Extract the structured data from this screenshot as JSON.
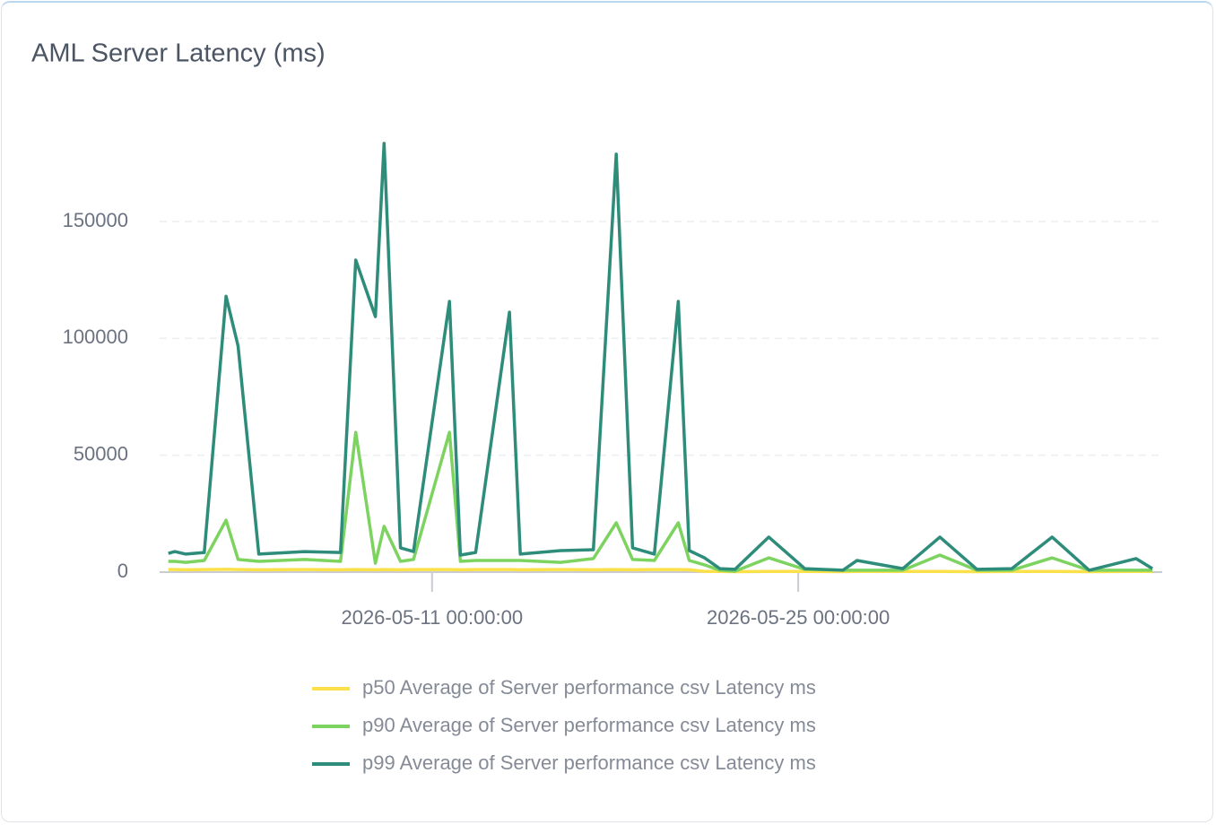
{
  "chart_data": {
    "type": "line",
    "title": "AML Server Latency (ms)",
    "x": [
      "2026-04-30 22:00:00",
      "2026-05-01 04:00:00",
      "2026-05-01 14:00:00",
      "2026-05-02 07:00:00",
      "2026-05-03 03:00:00",
      "2026-05-03 14:00:00",
      "2026-05-04 09:00:00",
      "2026-05-06 03:00:00",
      "2026-05-07 12:00:00",
      "2026-05-08 02:00:00",
      "2026-05-08 20:00:00",
      "2026-05-09 04:00:00",
      "2026-05-09 19:00:00",
      "2026-05-10 07:00:00",
      "2026-05-11 16:00:00",
      "2026-05-12 02:00:00",
      "2026-05-12 16:00:00",
      "2026-05-13 23:00:00",
      "2026-05-14 09:00:00",
      "2026-05-15 22:00:00",
      "2026-05-17 04:00:00",
      "2026-05-18 01:00:00",
      "2026-05-18 16:00:00",
      "2026-05-19 12:00:00",
      "2026-05-20 10:00:00",
      "2026-05-20 20:00:00",
      "2026-05-21 10:00:00",
      "2026-05-22 00:00:00",
      "2026-05-22 14:00:00",
      "2026-05-23 21:00:00",
      "2026-05-25 06:00:00",
      "2026-05-26 17:00:00",
      "2026-05-27 06:00:00",
      "2026-05-29 00:00:00",
      "2026-05-30 10:00:00",
      "2026-05-31 20:00:00",
      "2026-06-02 04:00:00",
      "2026-06-03 17:00:00",
      "2026-06-05 03:00:00",
      "2026-06-06 22:00:00",
      "2026-06-07 13:00:00"
    ],
    "series": [
      {
        "name": "p50 Average of Server performance csv Latency ms",
        "color": "#fbe04a",
        "values": [
          1100,
          1100,
          1000,
          1100,
          1200,
          1100,
          1000,
          1100,
          1000,
          1100,
          1000,
          1100,
          1000,
          1100,
          1100,
          1000,
          1100,
          1100,
          1000,
          1100,
          1000,
          1100,
          1000,
          1100,
          1100,
          1000,
          300,
          300,
          200,
          300,
          300,
          200,
          300,
          300,
          300,
          200,
          300,
          300,
          200,
          300,
          300
        ]
      },
      {
        "name": "p90 Average of Server performance csv Latency ms",
        "color": "#7dd35f",
        "values": [
          4600,
          4600,
          4200,
          5000,
          22200,
          5400,
          4600,
          5400,
          4600,
          59800,
          3800,
          19600,
          4600,
          5400,
          59800,
          4600,
          5000,
          5000,
          5000,
          4200,
          5800,
          21100,
          5400,
          5000,
          21100,
          5000,
          3100,
          800,
          400,
          6100,
          1200,
          800,
          800,
          800,
          7300,
          800,
          800,
          6100,
          800,
          800,
          800
        ]
      },
      {
        "name": "p99 Average of Server performance csv Latency ms",
        "color": "#2e8c7b",
        "values": [
          8000,
          8800,
          7700,
          8400,
          118000,
          96700,
          7700,
          8800,
          8400,
          133500,
          109300,
          183400,
          10400,
          8800,
          115800,
          7300,
          8400,
          111200,
          7700,
          9200,
          9600,
          178800,
          10400,
          7700,
          115800,
          9200,
          6100,
          1500,
          1200,
          15000,
          1500,
          800,
          5000,
          1500,
          15000,
          1200,
          1500,
          15000,
          800,
          5800,
          1500
        ]
      }
    ],
    "xlim": [
      "2026-04-30 14:00:00",
      "2026-06-07 22:00:00"
    ],
    "xticks": [
      "2026-05-11 00:00:00",
      "2026-05-25 00:00:00"
    ],
    "ylim": [
      0,
      190000
    ],
    "yticks": [
      0,
      50000,
      100000,
      150000
    ],
    "grid": true
  }
}
